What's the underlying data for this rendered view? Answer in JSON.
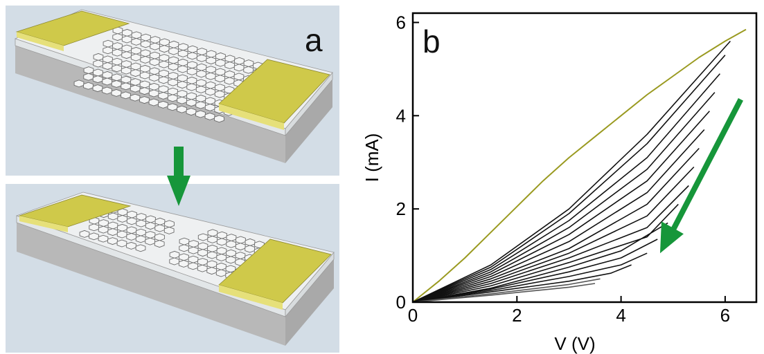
{
  "panel_a": {
    "label": "a",
    "colors": {
      "background": "#d3dde6",
      "substrate_side": "#b8b8b8",
      "substrate_front": "#cfcfcf",
      "oxide_top": "#eef0f1",
      "electrode": "#cfc94a",
      "electrode_edge": "#e2dc66",
      "arrow": "#16963a",
      "hex_stroke": "#6a6a6a"
    },
    "icons": [
      "gold-electrode-icon",
      "graphene-lattice-icon",
      "down-arrow-icon"
    ]
  },
  "chart_data": {
    "type": "line",
    "panel_label": "b",
    "title": "",
    "xlabel": "V (V)",
    "ylabel": "I (mA)",
    "xlim": [
      0,
      6.6
    ],
    "ylim": [
      0,
      6.2
    ],
    "x_ticks": [
      0,
      2,
      4,
      6
    ],
    "y_ticks": [
      0,
      2,
      4,
      6
    ],
    "grid": false,
    "legend": "none",
    "annotation": "green arrow pointing from upper-right to lower-left indicating decreasing current with successive sweeps",
    "colors": {
      "first_sweep": "#9a9a20",
      "sweeps": "#111111",
      "late_sweeps": "#555555",
      "arrow": "#16963a"
    },
    "series": [
      {
        "color": "#9a9a20",
        "x": [
          0,
          0.5,
          1.0,
          1.5,
          2.0,
          2.5,
          3.0,
          3.5,
          4.0,
          4.5,
          5.0,
          5.5,
          6.0,
          6.4
        ],
        "values": [
          0,
          0.45,
          0.95,
          1.5,
          2.05,
          2.6,
          3.1,
          3.55,
          4.0,
          4.45,
          4.85,
          5.25,
          5.6,
          5.85
        ]
      },
      {
        "color": "#111111",
        "x": [
          0,
          1.5,
          3.0,
          4.5,
          6.1
        ],
        "values": [
          0,
          0.8,
          2.0,
          3.6,
          5.6
        ]
      },
      {
        "color": "#111111",
        "x": [
          0,
          1.5,
          3.0,
          4.5,
          6.0
        ],
        "values": [
          0,
          0.75,
          1.9,
          3.4,
          5.3
        ]
      },
      {
        "color": "#111111",
        "x": [
          0,
          1.5,
          3.0,
          4.5,
          5.9
        ],
        "values": [
          0,
          0.7,
          1.75,
          3.1,
          4.9
        ]
      },
      {
        "color": "#111111",
        "x": [
          0,
          1.5,
          3.0,
          4.5,
          5.8
        ],
        "values": [
          0,
          0.65,
          1.6,
          2.85,
          4.5
        ]
      },
      {
        "color": "#111111",
        "x": [
          0,
          1.5,
          3.0,
          4.5,
          5.7
        ],
        "values": [
          0,
          0.6,
          1.45,
          2.6,
          4.1
        ]
      },
      {
        "color": "#111111",
        "x": [
          0,
          1.5,
          3.0,
          4.5,
          5.6
        ],
        "values": [
          0,
          0.55,
          1.3,
          2.35,
          3.7
        ]
      },
      {
        "color": "#111111",
        "x": [
          0,
          1.5,
          3.0,
          4.5,
          5.5
        ],
        "values": [
          0,
          0.5,
          1.15,
          2.1,
          3.3
        ]
      },
      {
        "color": "#111111",
        "x": [
          0,
          1.5,
          3.0,
          4.5,
          5.4
        ],
        "values": [
          0,
          0.45,
          1.05,
          1.85,
          2.9
        ]
      },
      {
        "color": "#111111",
        "x": [
          0,
          1.5,
          3.0,
          4.5,
          5.3
        ],
        "values": [
          0,
          0.4,
          0.95,
          1.6,
          2.5
        ]
      },
      {
        "color": "#111111",
        "x": [
          0,
          1.5,
          3.0,
          4.5,
          5.1
        ],
        "values": [
          0,
          0.35,
          0.85,
          1.4,
          2.1
        ]
      },
      {
        "color": "#111111",
        "x": [
          0,
          1.5,
          3.0,
          4.0,
          4.9
        ],
        "values": [
          0,
          0.3,
          0.75,
          1.1,
          1.7
        ]
      },
      {
        "color": "#111111",
        "x": [
          0,
          1.5,
          3.0,
          4.0,
          4.7
        ],
        "values": [
          0,
          0.28,
          0.65,
          0.95,
          1.35
        ]
      },
      {
        "color": "#111111",
        "x": [
          0,
          1.5,
          3.0,
          4.0,
          4.5
        ],
        "values": [
          0,
          0.25,
          0.55,
          0.8,
          1.05
        ]
      },
      {
        "color": "#111111",
        "x": [
          0,
          1.5,
          3.0,
          3.8,
          4.2
        ],
        "values": [
          0,
          0.22,
          0.45,
          0.62,
          0.8
        ]
      },
      {
        "color": "#555555",
        "x": [
          0,
          1.5,
          3.0,
          3.6
        ],
        "values": [
          0,
          0.18,
          0.38,
          0.5
        ]
      },
      {
        "color": "#555555",
        "x": [
          0,
          1.5,
          3.0,
          3.5
        ],
        "values": [
          0,
          0.15,
          0.32,
          0.4
        ]
      }
    ]
  }
}
